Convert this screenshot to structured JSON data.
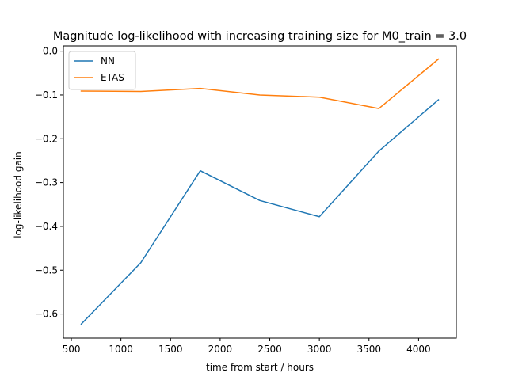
{
  "chart_data": {
    "type": "line",
    "title": "Magnitude log-likelihood with increasing training size for M0_train = 3.0",
    "xlabel": "time from start / hours",
    "ylabel": "log-likelihood gain",
    "xlim": [
      420,
      4380
    ],
    "ylim": [
      -0.655,
      0.012
    ],
    "xticks": [
      500,
      1000,
      1500,
      2000,
      2500,
      3000,
      3500,
      4000
    ],
    "yticks": [
      0.0,
      -0.1,
      -0.2,
      -0.3,
      -0.4,
      -0.5,
      -0.6
    ],
    "ytick_labels": [
      "0.0",
      "−0.1",
      "−0.2",
      "−0.3",
      "−0.4",
      "−0.5",
      "−0.6"
    ],
    "grid": false,
    "legend_position": "upper-left",
    "x": [
      600,
      1200,
      1800,
      2400,
      3000,
      3600,
      4200
    ],
    "series": [
      {
        "name": "NN",
        "color": "#1f77b4",
        "values": [
          -0.623,
          -0.483,
          -0.273,
          -0.341,
          -0.378,
          -0.228,
          -0.111
        ]
      },
      {
        "name": "ETAS",
        "color": "#ff7f0e",
        "values": [
          -0.091,
          -0.092,
          -0.085,
          -0.1,
          -0.105,
          -0.131,
          -0.018
        ]
      }
    ]
  }
}
